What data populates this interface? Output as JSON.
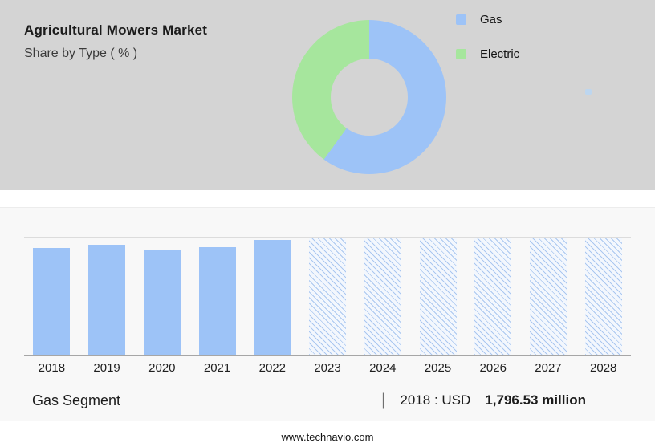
{
  "header": {
    "title": "Agricultural Mowers Market",
    "subtitle": "Share by Type ( % )"
  },
  "chart_data": [
    {
      "type": "pie",
      "subtype": "donut",
      "title": "Share by Type ( % )",
      "slices": [
        {
          "label": "Gas",
          "value": 60,
          "color": "#9dc3f7"
        },
        {
          "label": "Electric",
          "value": 40,
          "color": "#a6e69d"
        }
      ],
      "legend_position": "right",
      "hole_color": "#d4d4d4"
    },
    {
      "type": "bar",
      "categories": [
        "2018",
        "2019",
        "2020",
        "2021",
        "2022",
        "2023",
        "2024",
        "2025",
        "2026",
        "2027",
        "2028"
      ],
      "values_relative_pct": [
        91,
        94,
        89,
        92,
        98,
        100,
        100,
        100,
        100,
        100,
        100
      ],
      "historical_years": [
        "2018",
        "2019",
        "2020",
        "2021",
        "2022"
      ],
      "forecast_years": [
        "2023",
        "2024",
        "2025",
        "2026",
        "2027",
        "2028"
      ],
      "bar_color": "#9dc3f7",
      "hatch_color": "#aac7f0",
      "annotation": "2018 : USD 1,796.53 million",
      "xlabel": "",
      "ylabel": ""
    }
  ],
  "footer": {
    "segment_label": "Gas Segment",
    "separator": "|",
    "stat_prefix": "2018 : USD",
    "stat_value": "1,796.53 million",
    "website": "www.technavio.com"
  }
}
